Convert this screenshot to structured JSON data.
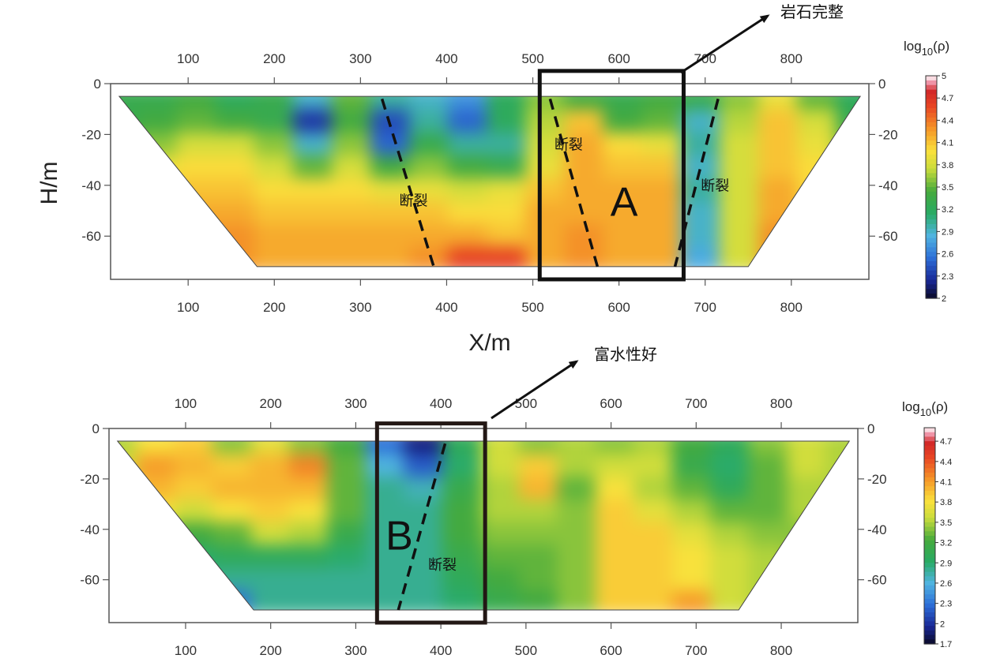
{
  "figure": {
    "x_axis_label": "X/m",
    "y_axis_label": "H/m"
  },
  "chart_data": [
    {
      "type": "heatmap",
      "xlabel": "X/m",
      "ylabel": "H/m",
      "xlim": [
        10,
        890
      ],
      "ylim": [
        -77,
        0
      ],
      "x_ticks": [
        100,
        200,
        300,
        400,
        500,
        600,
        700,
        800
      ],
      "y_ticks": [
        0,
        -20,
        -40,
        -60
      ],
      "x_tick_labels": [
        "100",
        "200",
        "300",
        "400",
        "500",
        "600",
        "700",
        "800"
      ],
      "y_tick_labels": [
        "0",
        "-20",
        "-40",
        "-60"
      ],
      "colorbar": {
        "title": "log10(ρ)",
        "title_base": "log",
        "title_sub": "10",
        "title_arg": "(ρ)",
        "min": 2,
        "max": 5,
        "ticks": [
          5,
          4.7,
          4.4,
          4.1,
          3.8,
          3.5,
          3.2,
          2.9,
          2.6,
          2.3,
          2
        ],
        "tick_labels": [
          "5",
          "4.7",
          "4.4",
          "4.1",
          "3.8",
          "3.5",
          "3.2",
          "2.9",
          "2.6",
          "2.3",
          "2"
        ]
      },
      "section": {
        "top": [
          [
            20,
            -5
          ],
          [
            880,
            -5
          ]
        ],
        "bottom": [
          [
            180,
            -72
          ],
          [
            750,
            -72
          ]
        ]
      },
      "cells_estimated_log10_rho": {
        "x": [
          20,
          65,
          110,
          155,
          200,
          245,
          290,
          335,
          380,
          425,
          470,
          515,
          560,
          605,
          650,
          695,
          740,
          785,
          830,
          875
        ],
        "z": [
          -6,
          -15,
          -24,
          -33,
          -42,
          -51,
          -60,
          -69
        ],
        "values": [
          [
            3.3,
            3.3,
            3.4,
            3.2,
            3.3,
            2.9,
            3.5,
            3.0,
            2.9,
            2.7,
            3.2,
            3.6,
            3.4,
            3.3,
            3.4,
            3.3,
            3.6,
            3.9,
            3.5,
            3.2
          ],
          [
            3.3,
            3.4,
            3.5,
            3.4,
            3.3,
            2.3,
            3.4,
            2.4,
            3.0,
            2.5,
            3.2,
            3.7,
            4.1,
            3.4,
            3.5,
            2.9,
            3.7,
            4.1,
            3.8,
            3.3
          ],
          [
            3.5,
            3.6,
            3.8,
            3.8,
            3.6,
            2.9,
            3.6,
            2.5,
            3.3,
            3.0,
            3.0,
            3.8,
            4.2,
            4.0,
            3.9,
            3.0,
            3.8,
            4.1,
            3.9,
            3.5
          ],
          [
            3.6,
            3.9,
            4.0,
            4.0,
            3.8,
            3.5,
            3.8,
            3.4,
            3.6,
            3.4,
            3.3,
            3.9,
            4.2,
            4.1,
            4.1,
            2.9,
            3.8,
            4.1,
            4.0,
            3.6
          ],
          [
            3.8,
            4.0,
            4.1,
            4.1,
            4.0,
            4.0,
            4.0,
            3.9,
            3.9,
            3.8,
            3.9,
            4.1,
            4.2,
            4.2,
            4.2,
            3.0,
            3.8,
            4.2,
            4.0,
            3.7
          ],
          [
            3.9,
            4.1,
            4.2,
            4.2,
            4.1,
            4.1,
            4.1,
            4.1,
            4.1,
            4.0,
            4.0,
            4.2,
            4.2,
            4.2,
            4.2,
            2.9,
            3.8,
            4.2,
            4.1,
            3.8
          ],
          [
            4.0,
            4.2,
            4.3,
            4.3,
            4.2,
            4.2,
            4.2,
            4.2,
            4.2,
            4.2,
            4.1,
            4.2,
            4.3,
            4.2,
            4.2,
            2.9,
            3.8,
            4.3,
            4.1,
            3.9
          ],
          [
            4.0,
            4.4,
            4.6,
            4.3,
            4.2,
            4.2,
            4.2,
            4.2,
            4.3,
            4.6,
            4.6,
            4.2,
            4.3,
            4.2,
            4.2,
            2.8,
            3.8,
            4.3,
            4.2,
            3.9
          ]
        ]
      },
      "faults": [
        {
          "label": "断裂",
          "line": [
            [
              325,
              -6
            ],
            [
              385,
              -72
            ]
          ],
          "label_at": [
            345,
            -48
          ]
        },
        {
          "label": "断裂",
          "line": [
            [
              520,
              -6
            ],
            [
              575,
              -72
            ]
          ],
          "label_at": [
            525,
            -26
          ]
        },
        {
          "label": "断裂",
          "line": [
            [
              715,
              -6
            ],
            [
              665,
              -72
            ]
          ],
          "label_at": [
            695,
            -42
          ]
        }
      ],
      "zone_box": {
        "label": "A",
        "x_range": [
          508,
          675
        ],
        "z_range": [
          -77,
          5
        ],
        "label_at": [
          590,
          -52
        ]
      },
      "callout": {
        "text": "岩石完整"
      }
    },
    {
      "type": "heatmap",
      "xlabel": "X/m",
      "ylabel": "",
      "xlim": [
        10,
        890
      ],
      "ylim": [
        -77,
        0
      ],
      "x_ticks": [
        100,
        200,
        300,
        400,
        500,
        600,
        700,
        800
      ],
      "y_ticks": [
        0,
        -20,
        -40,
        -60
      ],
      "x_tick_labels": [
        "100",
        "200",
        "300",
        "400",
        "500",
        "600",
        "700",
        "800"
      ],
      "y_tick_labels": [
        "0",
        "-20",
        "-40",
        "-60"
      ],
      "colorbar": {
        "title": "log10(ρ)",
        "title_base": "log",
        "title_sub": "10",
        "title_arg": "(ρ)",
        "min": 1.7,
        "max": 4.9,
        "ticks": [
          4.7,
          4.4,
          4.1,
          3.8,
          3.5,
          3.2,
          2.9,
          2.6,
          2.3,
          2,
          1.7
        ],
        "tick_labels": [
          "4.7",
          "4.4",
          "4.1",
          "3.8",
          "3.5",
          "3.2",
          "2.9",
          "2.6",
          "2.3",
          "2",
          "1.7"
        ]
      },
      "section": {
        "top": [
          [
            20,
            -5
          ],
          [
            880,
            -5
          ]
        ],
        "bottom": [
          [
            180,
            -72
          ],
          [
            750,
            -72
          ]
        ]
      },
      "cells_estimated_log10_rho": {
        "x": [
          20,
          65,
          110,
          155,
          200,
          245,
          290,
          335,
          380,
          425,
          470,
          515,
          560,
          605,
          650,
          695,
          740,
          785,
          830,
          875
        ],
        "z": [
          -6,
          -15,
          -24,
          -33,
          -42,
          -51,
          -60,
          -69
        ],
        "values": [
          [
            3.5,
            3.8,
            3.9,
            3.4,
            3.7,
            3.4,
            3.2,
            2.3,
            1.9,
            3.0,
            3.6,
            3.4,
            3.5,
            3.4,
            3.5,
            3.2,
            3.0,
            3.4,
            3.6,
            3.5
          ],
          [
            3.6,
            4.1,
            4.0,
            3.9,
            4.0,
            4.2,
            3.3,
            2.6,
            2.2,
            2.9,
            3.6,
            3.9,
            3.5,
            3.6,
            3.6,
            3.1,
            2.9,
            3.3,
            3.6,
            3.5
          ],
          [
            3.7,
            4.0,
            3.9,
            4.0,
            4.0,
            4.0,
            3.3,
            2.8,
            2.7,
            3.1,
            3.5,
            4.0,
            3.3,
            3.8,
            3.5,
            3.3,
            3.0,
            3.3,
            3.5,
            3.5
          ],
          [
            3.6,
            3.8,
            3.6,
            3.8,
            3.9,
            3.8,
            3.3,
            2.8,
            2.8,
            3.2,
            3.5,
            3.5,
            3.4,
            3.9,
            3.7,
            3.5,
            3.3,
            3.3,
            3.5,
            3.4
          ],
          [
            3.5,
            3.4,
            3.2,
            3.3,
            3.6,
            3.5,
            3.1,
            2.8,
            2.8,
            3.2,
            3.4,
            3.4,
            3.4,
            3.9,
            3.9,
            3.7,
            3.5,
            3.4,
            3.4,
            3.4
          ],
          [
            3.4,
            3.1,
            2.9,
            3.0,
            3.0,
            3.0,
            2.9,
            2.8,
            2.8,
            3.1,
            3.3,
            3.3,
            3.4,
            3.9,
            3.9,
            3.8,
            3.6,
            3.5,
            3.4,
            3.3
          ],
          [
            3.3,
            3.0,
            2.8,
            2.8,
            2.8,
            2.8,
            2.8,
            2.8,
            2.8,
            3.0,
            3.2,
            3.3,
            3.4,
            3.9,
            3.9,
            3.8,
            3.6,
            3.5,
            3.4,
            3.3
          ],
          [
            3.2,
            2.9,
            2.6,
            2.3,
            2.8,
            2.8,
            2.8,
            2.8,
            2.8,
            2.9,
            3.1,
            3.2,
            3.4,
            3.9,
            3.9,
            4.1,
            3.6,
            3.5,
            3.4,
            3.3
          ]
        ]
      },
      "faults": [
        {
          "label": "断裂",
          "line": [
            [
              405,
              -6
            ],
            [
              350,
              -72
            ]
          ],
          "label_at": [
            385,
            -56
          ]
        }
      ],
      "zone_box": {
        "label": "B",
        "x_range": [
          325,
          452
        ],
        "z_range": [
          -77,
          2
        ],
        "label_at": [
          335,
          -48
        ]
      },
      "callout": {
        "text": "富水性好"
      }
    }
  ]
}
